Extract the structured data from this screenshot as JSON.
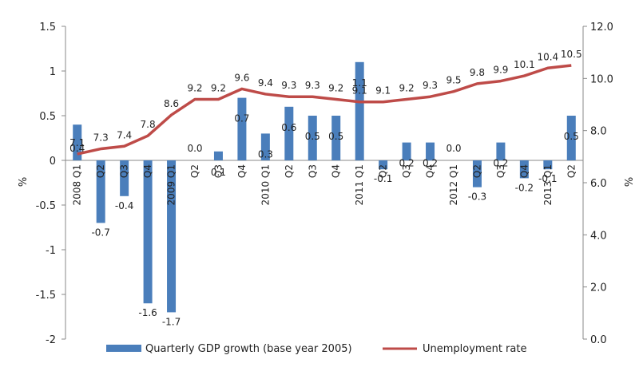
{
  "chart_data": {
    "type": "bar+line",
    "categories": [
      "2008 Q1",
      "Q2",
      "Q3",
      "Q4",
      "2009 Q1",
      "Q2",
      "Q3",
      "Q4",
      "2010 Q1",
      "Q2",
      "Q3",
      "Q4",
      "2011 Q1",
      "Q2",
      "Q3",
      "Q4",
      "2012 Q1",
      "Q2",
      "Q3",
      "Q4",
      "2013 Q1",
      "Q2"
    ],
    "series": [
      {
        "name": "Quarterly GDP growth (base year 2005)",
        "type": "bar",
        "axis": "left",
        "color": "#4a7ebb",
        "values": [
          0.4,
          -0.7,
          -0.4,
          -1.6,
          -1.7,
          0.0,
          0.1,
          0.7,
          0.3,
          0.6,
          0.5,
          0.5,
          1.1,
          -0.1,
          0.2,
          0.2,
          0.0,
          -0.3,
          0.2,
          -0.2,
          -0.1,
          0.5
        ],
        "labels": [
          "0.4",
          "-0.7",
          "-0.4",
          "-1.6",
          "-1.7",
          "0.0",
          "0.1",
          "0.7",
          "0.3",
          "0.6",
          "0.5",
          "0.5",
          "1.1",
          "-0.1",
          "0.2",
          "0.2",
          "0.0",
          "-0.3",
          "0.2",
          "-0.2",
          "-0.1",
          "0.5"
        ]
      },
      {
        "name": "Unemployment rate",
        "type": "line",
        "axis": "right",
        "color": "#be4b48",
        "values": [
          7.1,
          7.3,
          7.4,
          7.8,
          8.6,
          9.2,
          9.2,
          9.6,
          9.4,
          9.3,
          9.3,
          9.2,
          9.1,
          9.1,
          9.2,
          9.3,
          9.5,
          9.8,
          9.9,
          10.1,
          10.4,
          10.5
        ],
        "labels": [
          "7.1",
          "7.3",
          "7.4",
          "7.8",
          "8.6",
          "9.2",
          "9.2",
          "9.6",
          "9.4",
          "9.3",
          "9.3",
          "9.2",
          "9.1",
          "9.1",
          "9.2",
          "9.3",
          "9.5",
          "9.8",
          "9.9",
          "10.1",
          "10.4",
          "10.5"
        ]
      }
    ],
    "y_left": {
      "label": "%",
      "min": -2,
      "max": 1.5,
      "ticks": [
        "1.5",
        "1",
        "0.5",
        "0",
        "-0.5",
        "-1",
        "-1.5",
        "-2"
      ]
    },
    "y_right": {
      "label": "%",
      "min": 0,
      "max": 12,
      "ticks": [
        "12.0",
        "10.0",
        "8.0",
        "6.0",
        "4.0",
        "2.0",
        "0.0"
      ]
    },
    "grid": false,
    "legend_position": "bottom"
  }
}
